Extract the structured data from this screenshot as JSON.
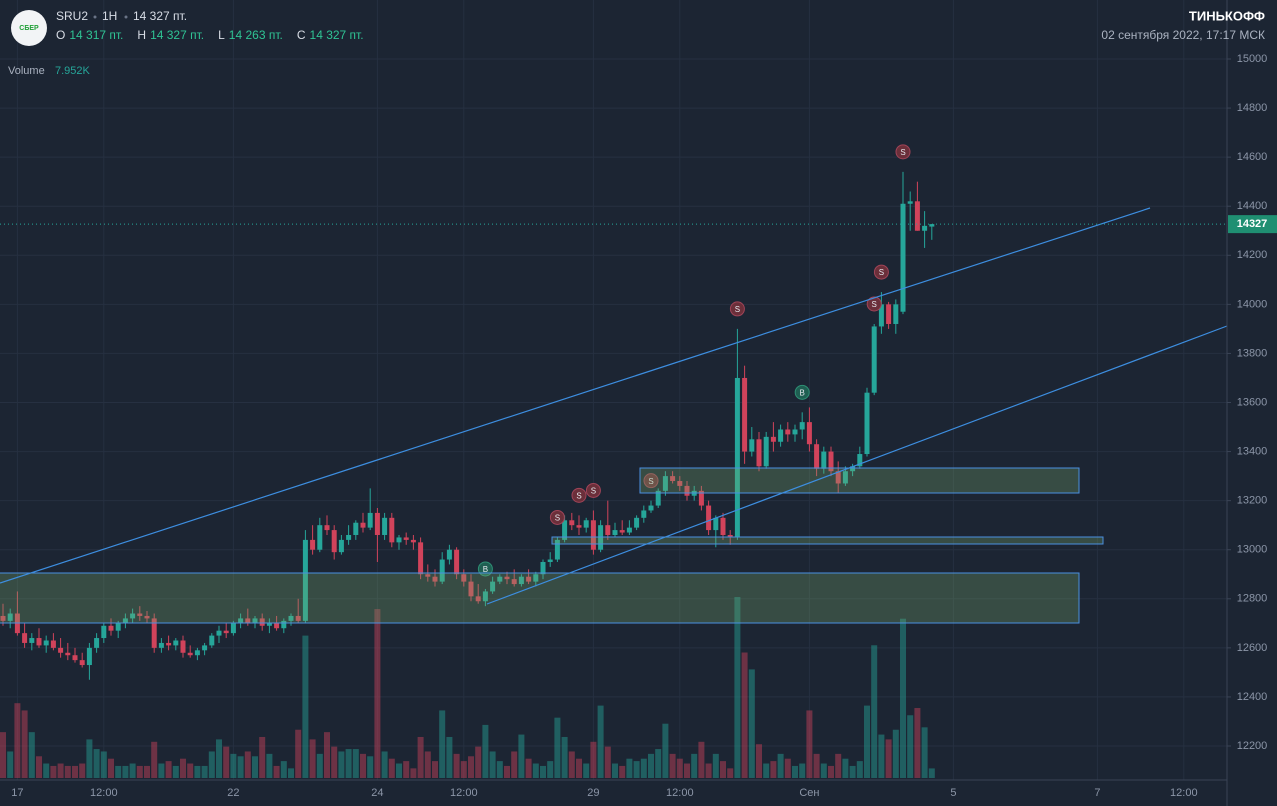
{
  "header": {
    "logo": "СБЕР",
    "ticker": "SRU2",
    "interval": "1H",
    "price": "14 327 пт.",
    "ohlc": [
      {
        "key": "O",
        "value": "14 317 пт."
      },
      {
        "key": "H",
        "value": "14 327 пт."
      },
      {
        "key": "L",
        "value": "14 263 пт."
      },
      {
        "key": "C",
        "value": "14 327 пт."
      }
    ],
    "brand": "ТИНЬКОФФ",
    "datetime": "02 сентября 2022, 17:17 МСК",
    "volume_title": "Volume",
    "volume_value": "7.952K"
  },
  "chart_data": {
    "type": "candlestick",
    "ylim": [
      12100,
      15000
    ],
    "yticks": [
      12200,
      12400,
      12600,
      12800,
      13000,
      13200,
      13400,
      13600,
      13800,
      14000,
      14200,
      14400,
      14600,
      14800,
      15000
    ],
    "xticks": [
      {
        "value": 2,
        "label": "17"
      },
      {
        "value": 14,
        "label": "12:00"
      },
      {
        "value": 32,
        "label": "22"
      },
      {
        "value": 52,
        "label": "24"
      },
      {
        "value": 64,
        "label": "12:00"
      },
      {
        "value": 82,
        "label": "29"
      },
      {
        "value": 94,
        "label": "12:00"
      },
      {
        "value": 112,
        "label": "Сен"
      },
      {
        "value": 132,
        "label": "5"
      },
      {
        "value": 152,
        "label": "7"
      },
      {
        "value": 164,
        "label": "12:00"
      }
    ],
    "last_price": 14327,
    "up_color": "#26a69a",
    "down_color": "#d1435b",
    "grid": true,
    "markers": [
      {
        "candle": 67,
        "label": "B"
      },
      {
        "candle": 77,
        "label": "S"
      },
      {
        "candle": 80,
        "label": "S"
      },
      {
        "candle": 82,
        "label": "S"
      },
      {
        "candle": 90,
        "label": "S"
      },
      {
        "candle": 102,
        "label": "S"
      },
      {
        "candle": 111,
        "label": "B"
      },
      {
        "candle": 121,
        "label": "S"
      },
      {
        "candle": 122,
        "label": "S"
      },
      {
        "candle": 125,
        "label": "S"
      }
    ],
    "candles": [
      [
        12730,
        12780,
        12690,
        12710,
        38000
      ],
      [
        12710,
        12760,
        12680,
        12740,
        22000
      ],
      [
        12740,
        12830,
        12650,
        12660,
        62000
      ],
      [
        12660,
        12700,
        12600,
        12620,
        56000
      ],
      [
        12620,
        12660,
        12590,
        12640,
        38000
      ],
      [
        12640,
        12680,
        12600,
        12610,
        18000
      ],
      [
        12610,
        12650,
        12580,
        12630,
        12000
      ],
      [
        12630,
        12660,
        12590,
        12600,
        10000
      ],
      [
        12600,
        12640,
        12560,
        12580,
        12000
      ],
      [
        12580,
        12620,
        12550,
        12570,
        10000
      ],
      [
        12570,
        12600,
        12540,
        12550,
        10000
      ],
      [
        12550,
        12580,
        12520,
        12530,
        12000
      ],
      [
        12530,
        12620,
        12470,
        12600,
        32000
      ],
      [
        12600,
        12660,
        12580,
        12640,
        24000
      ],
      [
        12640,
        12700,
        12620,
        12690,
        22000
      ],
      [
        12690,
        12720,
        12650,
        12670,
        16000
      ],
      [
        12670,
        12710,
        12640,
        12700,
        10000
      ],
      [
        12700,
        12740,
        12680,
        12720,
        10000
      ],
      [
        12720,
        12760,
        12700,
        12740,
        12000
      ],
      [
        12740,
        12770,
        12710,
        12730,
        10000
      ],
      [
        12730,
        12750,
        12700,
        12720,
        10000
      ],
      [
        12720,
        12740,
        12580,
        12600,
        30000
      ],
      [
        12600,
        12640,
        12580,
        12620,
        12000
      ],
      [
        12620,
        12650,
        12590,
        12610,
        14000
      ],
      [
        12610,
        12640,
        12590,
        12630,
        10000
      ],
      [
        12630,
        12650,
        12560,
        12580,
        16000
      ],
      [
        12580,
        12610,
        12560,
        12570,
        12000
      ],
      [
        12570,
        12600,
        12550,
        12590,
        10000
      ],
      [
        12590,
        12620,
        12570,
        12610,
        10000
      ],
      [
        12610,
        12660,
        12600,
        12650,
        22000
      ],
      [
        12650,
        12690,
        12620,
        12670,
        32000
      ],
      [
        12670,
        12700,
        12640,
        12660,
        26000
      ],
      [
        12660,
        12710,
        12650,
        12700,
        20000
      ],
      [
        12700,
        12740,
        12680,
        12720,
        18000
      ],
      [
        12720,
        12760,
        12690,
        12700,
        22000
      ],
      [
        12700,
        12730,
        12680,
        12720,
        18000
      ],
      [
        12720,
        12740,
        12670,
        12690,
        34000
      ],
      [
        12690,
        12720,
        12660,
        12700,
        20000
      ],
      [
        12700,
        12730,
        12670,
        12680,
        10000
      ],
      [
        12680,
        12720,
        12660,
        12710,
        14000
      ],
      [
        12710,
        12740,
        12690,
        12730,
        8000
      ],
      [
        12730,
        12800,
        12700,
        12710,
        40000
      ],
      [
        12710,
        13080,
        12700,
        13040,
        118000
      ],
      [
        13040,
        13100,
        12980,
        13000,
        32000
      ],
      [
        13000,
        13130,
        12990,
        13100,
        20000
      ],
      [
        13100,
        13140,
        13060,
        13080,
        38000
      ],
      [
        13080,
        13100,
        12960,
        12990,
        26000
      ],
      [
        12990,
        13060,
        12980,
        13040,
        22000
      ],
      [
        13040,
        13100,
        13020,
        13060,
        24000
      ],
      [
        13060,
        13120,
        13040,
        13110,
        24000
      ],
      [
        13110,
        13150,
        13070,
        13090,
        20000
      ],
      [
        13090,
        13250,
        13080,
        13150,
        18000
      ],
      [
        13150,
        13170,
        12950,
        13060,
        140000
      ],
      [
        13060,
        13150,
        13040,
        13130,
        22000
      ],
      [
        13130,
        13150,
        13010,
        13030,
        16000
      ],
      [
        13030,
        13060,
        13000,
        13050,
        12000
      ],
      [
        13050,
        13070,
        13020,
        13040,
        14000
      ],
      [
        13040,
        13060,
        13000,
        13030,
        8000
      ],
      [
        13030,
        13050,
        12880,
        12900,
        34000
      ],
      [
        12900,
        12940,
        12870,
        12890,
        22000
      ],
      [
        12890,
        12920,
        12850,
        12870,
        14000
      ],
      [
        12870,
        12990,
        12860,
        12960,
        56000
      ],
      [
        12960,
        13020,
        12940,
        13000,
        34000
      ],
      [
        13000,
        13010,
        12880,
        12900,
        20000
      ],
      [
        12900,
        12920,
        12850,
        12870,
        14000
      ],
      [
        12870,
        12900,
        12790,
        12810,
        18000
      ],
      [
        12810,
        12860,
        12780,
        12790,
        26000
      ],
      [
        12790,
        12840,
        12770,
        12830,
        44000
      ],
      [
        12830,
        12890,
        12820,
        12870,
        22000
      ],
      [
        12870,
        12900,
        12860,
        12890,
        14000
      ],
      [
        12890,
        12910,
        12860,
        12880,
        10000
      ],
      [
        12880,
        12920,
        12850,
        12860,
        22000
      ],
      [
        12860,
        12900,
        12850,
        12890,
        36000
      ],
      [
        12890,
        12920,
        12860,
        12870,
        16000
      ],
      [
        12870,
        12910,
        12850,
        12900,
        12000
      ],
      [
        12900,
        12960,
        12880,
        12950,
        10000
      ],
      [
        12950,
        12990,
        12930,
        12960,
        14000
      ],
      [
        12960,
        13050,
        12950,
        13040,
        50000
      ],
      [
        13040,
        13140,
        13030,
        13120,
        34000
      ],
      [
        13120,
        13150,
        13080,
        13100,
        22000
      ],
      [
        13100,
        13140,
        13060,
        13090,
        16000
      ],
      [
        13090,
        13130,
        13070,
        13120,
        12000
      ],
      [
        13120,
        13160,
        12980,
        13000,
        30000
      ],
      [
        13000,
        13120,
        12990,
        13100,
        60000
      ],
      [
        13100,
        13200,
        13040,
        13060,
        26000
      ],
      [
        13060,
        13110,
        13050,
        13080,
        12000
      ],
      [
        13080,
        13120,
        13060,
        13070,
        10000
      ],
      [
        13070,
        13120,
        13060,
        13090,
        16000
      ],
      [
        13090,
        13140,
        13080,
        13130,
        14000
      ],
      [
        13130,
        13180,
        13110,
        13160,
        16000
      ],
      [
        13160,
        13200,
        13150,
        13180,
        20000
      ],
      [
        13180,
        13250,
        13170,
        13240,
        24000
      ],
      [
        13240,
        13320,
        13220,
        13300,
        45000
      ],
      [
        13300,
        13320,
        13270,
        13280,
        20000
      ],
      [
        13280,
        13300,
        13240,
        13260,
        16000
      ],
      [
        13260,
        13280,
        13200,
        13220,
        12000
      ],
      [
        13220,
        13260,
        13200,
        13240,
        20000
      ],
      [
        13240,
        13260,
        13160,
        13180,
        30000
      ],
      [
        13180,
        13200,
        13060,
        13080,
        12000
      ],
      [
        13080,
        13140,
        13010,
        13130,
        20000
      ],
      [
        13130,
        13150,
        13040,
        13060,
        14000
      ],
      [
        13060,
        13080,
        13020,
        13050,
        8000
      ],
      [
        13050,
        13900,
        13040,
        13700,
        150000
      ],
      [
        13700,
        13750,
        13350,
        13400,
        104000
      ],
      [
        13400,
        13500,
        13380,
        13450,
        90000
      ],
      [
        13450,
        13480,
        13320,
        13340,
        28000
      ],
      [
        13340,
        13480,
        13330,
        13460,
        12000
      ],
      [
        13460,
        13520,
        13400,
        13440,
        14000
      ],
      [
        13440,
        13510,
        13420,
        13490,
        20000
      ],
      [
        13490,
        13520,
        13440,
        13470,
        16000
      ],
      [
        13470,
        13510,
        13440,
        13490,
        10000
      ],
      [
        13490,
        13560,
        13450,
        13520,
        12000
      ],
      [
        13520,
        13580,
        13400,
        13430,
        56000
      ],
      [
        13430,
        13450,
        13300,
        13330,
        20000
      ],
      [
        13330,
        13420,
        13310,
        13400,
        12000
      ],
      [
        13400,
        13420,
        13300,
        13320,
        10000
      ],
      [
        13320,
        13360,
        13230,
        13270,
        20000
      ],
      [
        13270,
        13340,
        13260,
        13320,
        16000
      ],
      [
        13320,
        13350,
        13300,
        13340,
        10000
      ],
      [
        13340,
        13420,
        13330,
        13390,
        14000
      ],
      [
        13390,
        13660,
        13380,
        13640,
        60000
      ],
      [
        13640,
        13920,
        13630,
        13910,
        110000
      ],
      [
        13910,
        14050,
        13880,
        14000,
        36000
      ],
      [
        14000,
        14010,
        13900,
        13920,
        32000
      ],
      [
        13920,
        14020,
        13880,
        14000,
        40000
      ],
      [
        13970,
        14540,
        13960,
        14410,
        132000
      ],
      [
        14410,
        14460,
        14300,
        14420,
        52000
      ],
      [
        14420,
        14500,
        14300,
        14300,
        58000
      ],
      [
        14300,
        14380,
        14230,
        14320,
        42000
      ],
      [
        14317,
        14327,
        14263,
        14327,
        7952
      ]
    ]
  }
}
